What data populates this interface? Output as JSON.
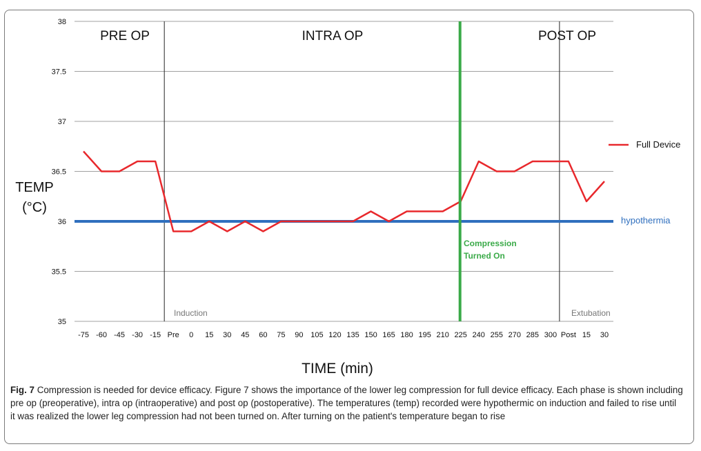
{
  "chart_data": {
    "type": "line",
    "ylabel_line1": "TEMP",
    "ylabel_line2": "(°C)",
    "xlabel": "TIME (min)",
    "ylim": [
      35,
      38
    ],
    "yticks": [
      "35",
      "35.5",
      "36",
      "36.5",
      "37",
      "37.5",
      "38"
    ],
    "categories": [
      "-75",
      "-60",
      "-45",
      "-30",
      "-15",
      "Pre",
      "0",
      "15",
      "30",
      "45",
      "60",
      "75",
      "90",
      "105",
      "120",
      "135",
      "150",
      "165",
      "180",
      "195",
      "210",
      "225",
      "240",
      "255",
      "270",
      "285",
      "300",
      "Post",
      "15",
      "30"
    ],
    "series": [
      {
        "name": "Full Device",
        "color": "#e8282c",
        "values": [
          36.7,
          36.5,
          36.5,
          36.6,
          36.6,
          35.9,
          35.9,
          36.0,
          35.9,
          36.0,
          35.9,
          36.0,
          36.0,
          36.0,
          36.0,
          36.0,
          36.1,
          36.0,
          36.1,
          36.1,
          36.1,
          36.2,
          36.6,
          36.5,
          36.5,
          36.6,
          36.6,
          36.6,
          36.2,
          36.4
        ]
      }
    ],
    "reference_line": {
      "label": "hypothermia",
      "value": 36.0,
      "color": "#2f6fbe"
    },
    "phases": [
      {
        "label": "PRE OP"
      },
      {
        "label": "INTRA OP"
      },
      {
        "label": "POST OP"
      }
    ],
    "events": [
      {
        "label": "Induction",
        "color": "#222222"
      },
      {
        "label": "Extubation",
        "color": "#222222"
      }
    ],
    "marker": {
      "line1": "Compression",
      "line2": "Turned On",
      "color": "#3aaa48"
    }
  },
  "caption": {
    "figure_label": "Fig. 7",
    "text": " Compression is needed for device efficacy. Figure 7 shows the importance of the lower leg compression for full device efficacy. Each phase is shown including pre op (preoperative), intra op (intraoperative) and post op (postoperative). The temperatures (temp) recorded were hypothermic on induction and failed to rise until it was realized the lower leg compression had not been turned on. After turning on the patient's temperature began to rise"
  }
}
